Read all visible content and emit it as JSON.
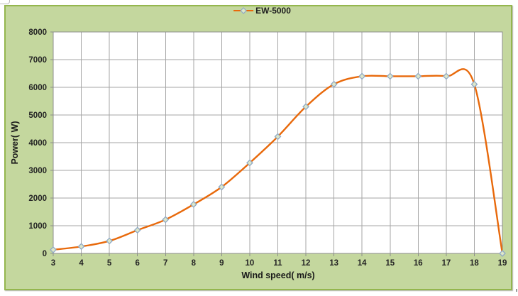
{
  "chart_data": {
    "type": "line",
    "title": "",
    "xlabel": "Wind speed( m/s)",
    "ylabel": "Power( W)",
    "smooth": true,
    "grid": true,
    "legend_position": "top-center",
    "xlim": [
      3,
      19
    ],
    "ylim": [
      0,
      8000
    ],
    "xticks": [
      3,
      4,
      5,
      6,
      7,
      8,
      9,
      10,
      11,
      12,
      13,
      14,
      15,
      16,
      17,
      18,
      19
    ],
    "yticks": [
      0,
      1000,
      2000,
      3000,
      4000,
      5000,
      6000,
      7000,
      8000
    ],
    "series": [
      {
        "name": "EW-5000",
        "x": [
          3,
          4,
          5,
          6,
          7,
          8,
          9,
          10,
          11,
          12,
          13,
          14,
          15,
          16,
          17,
          18,
          19
        ],
        "y": [
          130,
          250,
          450,
          840,
          1220,
          1770,
          2400,
          3270,
          4220,
          5300,
          6110,
          6400,
          6400,
          6400,
          6400,
          6110,
          0
        ]
      }
    ]
  },
  "colors": {
    "chart_background": "#c4d79e",
    "chart_border": "#94b64e",
    "plot_background": "#ffffff",
    "gridline": "#a6a6a6",
    "axis_line": "#8c8c8c",
    "series_line": "#e8690b",
    "marker_fill": "#dde7c8",
    "marker_stroke": "#8fa9c6",
    "tick_label": "#242424"
  }
}
